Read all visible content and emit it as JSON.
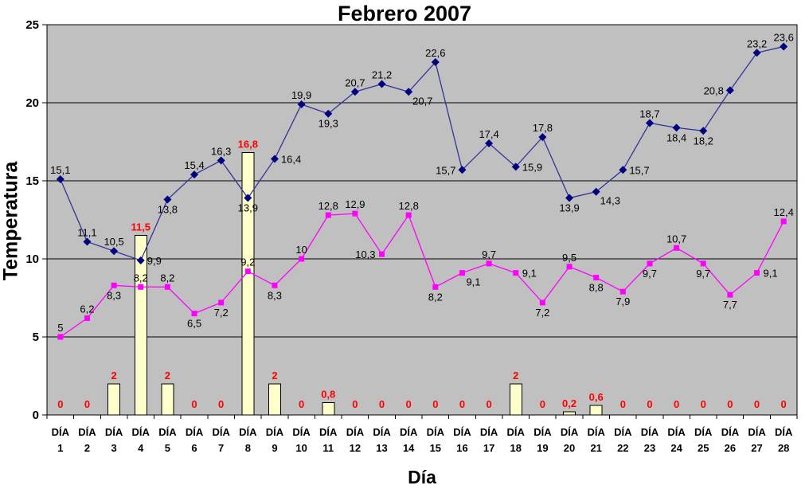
{
  "page": {
    "background": "#FFFFFF"
  },
  "chart_data": {
    "type": "bar",
    "subtype": "combo-line-bar",
    "title": "Febrero 2007",
    "xlabel": "Día",
    "ylabel": "Temperatura",
    "ylim": [
      0,
      25
    ],
    "y_ticks": [
      0,
      5,
      10,
      15,
      20,
      25
    ],
    "grid": true,
    "legend_position": "none",
    "plot_background": "#C0C0C0",
    "decimal_separator": ",",
    "categories": [
      "DÍA 1",
      "DÍA 2",
      "DÍA 3",
      "DÍA 4",
      "DÍA 5",
      "DÍA 6",
      "DÍA 7",
      "DÍA 8",
      "DÍA 9",
      "DÍA 10",
      "DÍA 11",
      "DÍA 12",
      "DÍA 13",
      "DÍA 14",
      "DÍA 15",
      "DÍA 16",
      "DÍA 17",
      "DÍA 18",
      "DÍA 19",
      "DÍA 20",
      "DÍA 21",
      "DÍA 22",
      "DÍA 23",
      "DÍA 24",
      "DÍA 25",
      "DÍA 26",
      "DÍA 27",
      "DÍA 28"
    ],
    "series": [
      {
        "name": "dark-blue-line",
        "type": "line",
        "marker": "diamond",
        "line_color": "#333399",
        "marker_color": "#000080",
        "label_color": "#000000",
        "values": [
          15.1,
          11.1,
          10.5,
          9.9,
          13.8,
          15.4,
          16.3,
          13.9,
          16.4,
          19.9,
          19.3,
          20.7,
          21.2,
          20.7,
          22.6,
          15.7,
          17.4,
          15.9,
          17.8,
          13.9,
          14.3,
          15.7,
          18.7,
          18.4,
          18.2,
          20.8,
          23.2,
          23.6
        ]
      },
      {
        "name": "magenta-line",
        "type": "line",
        "marker": "square",
        "line_color": "#FF00FF",
        "marker_color": "#FF00FF",
        "label_color": "#000000",
        "values": [
          5,
          6.2,
          8.3,
          8.2,
          8.2,
          6.5,
          7.2,
          9.2,
          8.3,
          10,
          12.8,
          12.9,
          10.3,
          12.8,
          8.2,
          9.1,
          9.7,
          9.1,
          7.2,
          9.5,
          8.8,
          7.9,
          9.7,
          10.7,
          9.7,
          7.7,
          9.1,
          12.4
        ]
      },
      {
        "name": "pale-yellow-bars",
        "type": "bar",
        "fill": "#FFFFCC",
        "stroke": "#000000",
        "label_color": "#FF0000",
        "values": [
          0,
          0,
          2,
          11.5,
          2,
          0,
          0,
          16.8,
          2,
          0,
          0.8,
          0,
          0,
          0,
          0,
          0,
          0,
          2,
          0,
          0.2,
          0.6,
          0,
          0,
          0,
          0,
          0,
          0,
          0
        ]
      }
    ]
  }
}
